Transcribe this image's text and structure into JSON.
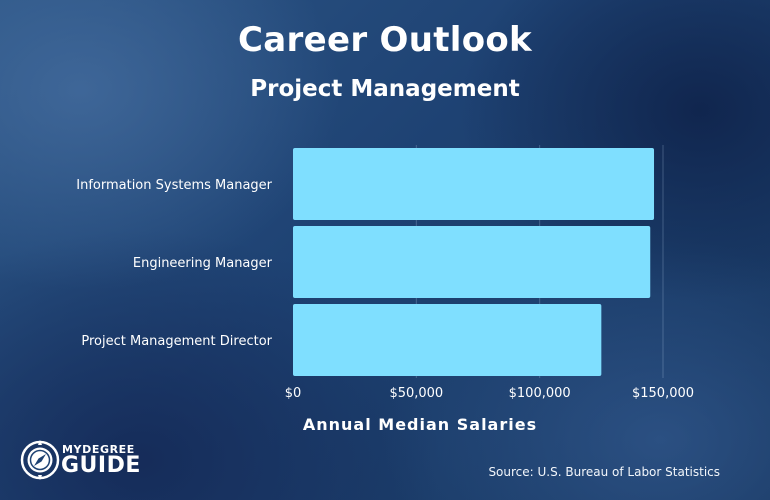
{
  "chart_data": {
    "type": "bar",
    "orientation": "horizontal",
    "title": "Career Outlook",
    "subtitle": "Project Management",
    "categories": [
      "Information Systems Manager",
      "Engineering Manager",
      "Project Management Director"
    ],
    "values": [
      146360,
      144830,
      125000
    ],
    "xlabel": "Annual Median Salaries",
    "ylabel": "",
    "xlim": [
      0,
      150000
    ],
    "x_ticks": [
      0,
      50000,
      100000,
      150000
    ],
    "x_tick_labels": [
      "$0",
      "$50,000",
      "$100,000",
      "$150,000"
    ],
    "grid": true,
    "bar_color": "#7fdfff",
    "source": "Source: U.S. Bureau of Labor Statistics"
  },
  "brand": {
    "name_top": "MYDEGREE",
    "name_bottom": "GUIDE",
    "icon": "compass-icon"
  }
}
